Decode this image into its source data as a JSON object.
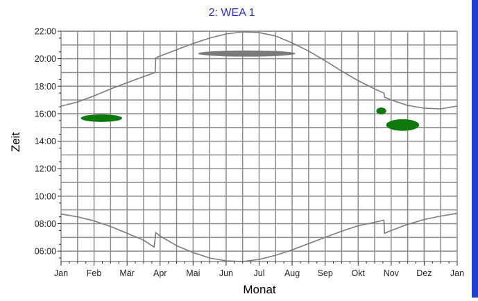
{
  "colors": {
    "title": "#2b2bd6",
    "grid": "#8c8c8c",
    "curve": "#7a7a7a",
    "axis_text": "#222222",
    "shadow_green": "#0e7a0e",
    "shadow_gray": "#7a7a7a",
    "right_bar": "#1f3fd0"
  },
  "chart_data": {
    "type": "line",
    "title": "2: WEA 1",
    "xlabel": "Monat",
    "ylabel": "Zeit",
    "xlim": [
      0,
      12
    ],
    "ylim": [
      5.25,
      22.0
    ],
    "grid": true,
    "x_tick_labels": [
      "Jan",
      "Feb",
      "Mär",
      "Apr",
      "Mai",
      "Jun",
      "Jul",
      "Aug",
      "Sep",
      "Okt",
      "Nov",
      "Dez",
      "Jan"
    ],
    "y_tick_labels": [
      {
        "label": "22:00",
        "value": 22
      },
      {
        "label": "20:00",
        "value": 20
      },
      {
        "label": "18:00",
        "value": 18
      },
      {
        "label": "16:00",
        "value": 16
      },
      {
        "label": "14:00",
        "value": 14
      },
      {
        "label": "12:00",
        "value": 12
      },
      {
        "label": "10:00",
        "value": 10
      },
      {
        "label": "08:00",
        "value": 8
      },
      {
        "label": "06:00",
        "value": 6
      }
    ],
    "series": [
      {
        "role": "sunset",
        "points": [
          [
            0,
            16.55
          ],
          [
            0.5,
            16.85
          ],
          [
            1,
            17.3
          ],
          [
            1.5,
            17.8
          ],
          [
            2,
            18.25
          ],
          [
            2.5,
            18.7
          ],
          [
            2.85,
            19.0
          ],
          [
            2.87,
            20.05
          ],
          [
            3,
            20.2
          ],
          [
            3.5,
            20.65
          ],
          [
            4,
            21.1
          ],
          [
            4.5,
            21.5
          ],
          [
            5,
            21.8
          ],
          [
            5.5,
            21.95
          ],
          [
            6,
            21.9
          ],
          [
            6.5,
            21.65
          ],
          [
            7,
            21.15
          ],
          [
            7.5,
            20.55
          ],
          [
            8,
            19.85
          ],
          [
            8.5,
            19.1
          ],
          [
            9,
            18.4
          ],
          [
            9.5,
            17.8
          ],
          [
            9.78,
            17.5
          ],
          [
            9.8,
            17.2
          ],
          [
            10,
            17.0
          ],
          [
            10.5,
            16.6
          ],
          [
            11,
            16.4
          ],
          [
            11.5,
            16.35
          ],
          [
            12,
            16.55
          ]
        ]
      },
      {
        "role": "sunrise",
        "points": [
          [
            0,
            8.7
          ],
          [
            0.5,
            8.5
          ],
          [
            1,
            8.2
          ],
          [
            1.5,
            7.8
          ],
          [
            2,
            7.3
          ],
          [
            2.5,
            6.8
          ],
          [
            2.82,
            6.3
          ],
          [
            2.87,
            7.35
          ],
          [
            3,
            7.1
          ],
          [
            3.5,
            6.4
          ],
          [
            4,
            5.9
          ],
          [
            4.5,
            5.5
          ],
          [
            5,
            5.3
          ],
          [
            5.5,
            5.25
          ],
          [
            6,
            5.4
          ],
          [
            6.5,
            5.7
          ],
          [
            7,
            6.1
          ],
          [
            7.5,
            6.55
          ],
          [
            8,
            7.0
          ],
          [
            8.5,
            7.45
          ],
          [
            9,
            7.85
          ],
          [
            9.5,
            8.1
          ],
          [
            9.78,
            8.25
          ],
          [
            9.8,
            7.3
          ],
          [
            10,
            7.5
          ],
          [
            10.5,
            7.95
          ],
          [
            11,
            8.3
          ],
          [
            11.5,
            8.55
          ],
          [
            12,
            8.75
          ]
        ]
      }
    ],
    "shadow_periods": [
      {
        "color": "green",
        "x": [
          0.6,
          1.85
        ],
        "y": [
          15.4,
          15.95
        ]
      },
      {
        "color": "gray",
        "x": [
          4.15,
          7.1
        ],
        "y": [
          20.15,
          20.6
        ]
      },
      {
        "color": "green",
        "x": [
          9.55,
          9.85
        ],
        "y": [
          15.95,
          16.45
        ]
      },
      {
        "color": "green",
        "x": [
          9.85,
          10.85
        ],
        "y": [
          14.75,
          15.6
        ]
      }
    ]
  }
}
